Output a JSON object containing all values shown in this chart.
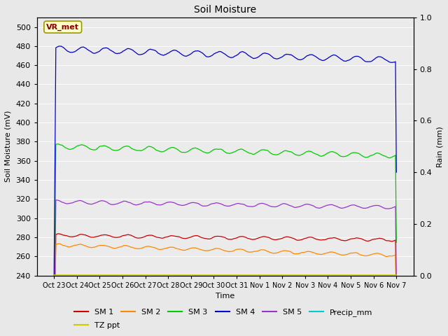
{
  "title": "Soil Moisture",
  "xlabel": "Time",
  "ylabel_left": "Soil Moisture (mV)",
  "ylabel_right": "Rain (mm)",
  "annotation_text": "VR_met",
  "x_tick_labels": [
    "Oct 23",
    "Oct 24",
    "Oct 25",
    "Oct 26",
    "Oct 27",
    "Oct 28",
    "Oct 29",
    "Oct 30",
    "Oct 31",
    "Nov 1",
    "Nov 2",
    "Nov 3",
    "Nov 4",
    "Nov 5",
    "Nov 6",
    "Nov 7"
  ],
  "ylim_left": [
    240,
    510
  ],
  "ylim_right": [
    0.0,
    1.0
  ],
  "fig_bg_color": "#e8e8e8",
  "plot_bg_color": "#ebebeb",
  "grid_color": "#ffffff",
  "colors": {
    "SM1": "#cc0000",
    "SM2": "#ff8800",
    "SM3": "#00cc00",
    "SM4": "#0000cc",
    "SM5": "#9933cc",
    "Precip_mm": "#00cccc",
    "TZ_ppt": "#cccc00"
  },
  "yticks_left": [
    240,
    260,
    280,
    300,
    320,
    340,
    360,
    380,
    400,
    420,
    440,
    460,
    480,
    500
  ],
  "yticks_right": [
    0.0,
    0.2,
    0.4,
    0.6,
    0.8,
    1.0
  ],
  "legend_row1": [
    "SM 1",
    "SM 2",
    "SM 3",
    "SM 4",
    "SM 5",
    "Precip_mm"
  ],
  "legend_row2": [
    "TZ ppt"
  ],
  "legend_colors_row1": [
    "#cc0000",
    "#ff8800",
    "#00cc00",
    "#0000cc",
    "#9933cc",
    "#00cccc"
  ],
  "legend_colors_row2": [
    "#cccc00"
  ]
}
